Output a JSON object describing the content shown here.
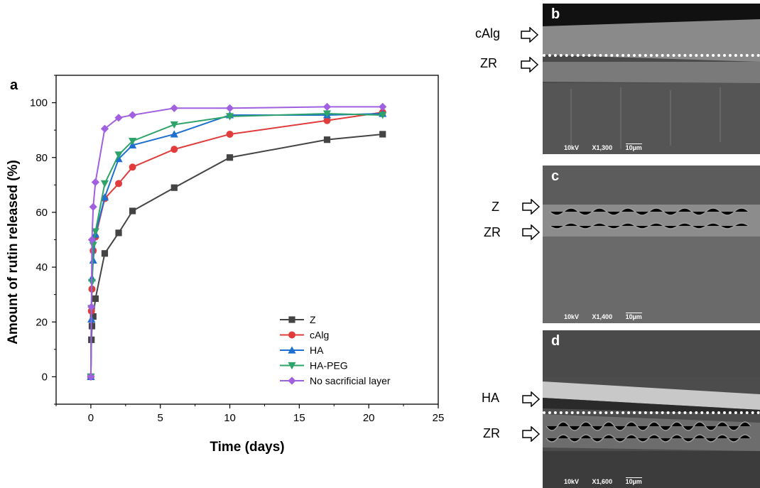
{
  "panel_a_letter": "a",
  "chart_data": {
    "type": "line",
    "xlabel": "Time (days)",
    "ylabel": "Amount of rutin released (%)",
    "xlim": [
      -2.5,
      25
    ],
    "ylim": [
      -10,
      110
    ],
    "xticks": [
      0,
      5,
      10,
      15,
      20,
      25
    ],
    "yticks": [
      0,
      20,
      40,
      60,
      80,
      100
    ],
    "grid": false,
    "legend_position": "bottom-right",
    "series": [
      {
        "name": "Z",
        "color": "#444444",
        "marker": "square",
        "x": [
          0,
          0.04,
          0.08,
          0.17,
          0.33,
          1,
          2,
          3,
          6,
          10,
          17,
          21
        ],
        "y": [
          0,
          13.5,
          18.5,
          22,
          28.5,
          45,
          52.5,
          60.5,
          69,
          80,
          86.5,
          88.5
        ]
      },
      {
        "name": "cAlg",
        "color": "#e03c3c",
        "marker": "circle",
        "x": [
          0,
          0.04,
          0.08,
          0.17,
          0.33,
          1,
          2,
          3,
          6,
          10,
          17,
          21
        ],
        "y": [
          0,
          24,
          32,
          46,
          51,
          65,
          70.5,
          76.5,
          83,
          88.5,
          93.5,
          96.5
        ]
      },
      {
        "name": "HA",
        "color": "#1e6fd0",
        "marker": "triangle-up",
        "x": [
          0,
          0.04,
          0.08,
          0.17,
          0.33,
          1,
          2,
          3,
          6,
          10,
          17,
          21
        ],
        "y": [
          0,
          21,
          36,
          42.5,
          52,
          65.5,
          79.5,
          84.5,
          88.5,
          95.5,
          95.5,
          96
        ]
      },
      {
        "name": "HA-PEG",
        "color": "#2ea36a",
        "marker": "triangle-down",
        "x": [
          0,
          0.04,
          0.08,
          0.17,
          0.33,
          1,
          2,
          3,
          6,
          10,
          17,
          21
        ],
        "y": [
          0,
          25,
          34.5,
          48,
          53,
          70.5,
          81,
          86,
          92,
          95,
          96,
          95.5
        ]
      },
      {
        "name": "No sacrificial layer",
        "color": "#a060e0",
        "marker": "diamond",
        "x": [
          0,
          0.04,
          0.08,
          0.17,
          0.33,
          1,
          2,
          3,
          6,
          10,
          17,
          21
        ],
        "y": [
          0,
          25.5,
          50,
          62,
          71,
          90.5,
          94.5,
          95.5,
          98,
          98,
          98.5,
          98.5
        ]
      }
    ]
  },
  "sem_panels": [
    {
      "letter": "b",
      "kv": "10kV",
      "mag": "X1,300",
      "scale": "10µm",
      "labels": [
        "cAlg",
        "ZR"
      ]
    },
    {
      "letter": "c",
      "kv": "10kV",
      "mag": "X1,400",
      "scale": "10µm",
      "labels": [
        "Z",
        "ZR"
      ]
    },
    {
      "letter": "d",
      "kv": "10kV",
      "mag": "X1,600",
      "scale": "10µm",
      "labels": [
        "HA",
        "ZR"
      ]
    }
  ]
}
